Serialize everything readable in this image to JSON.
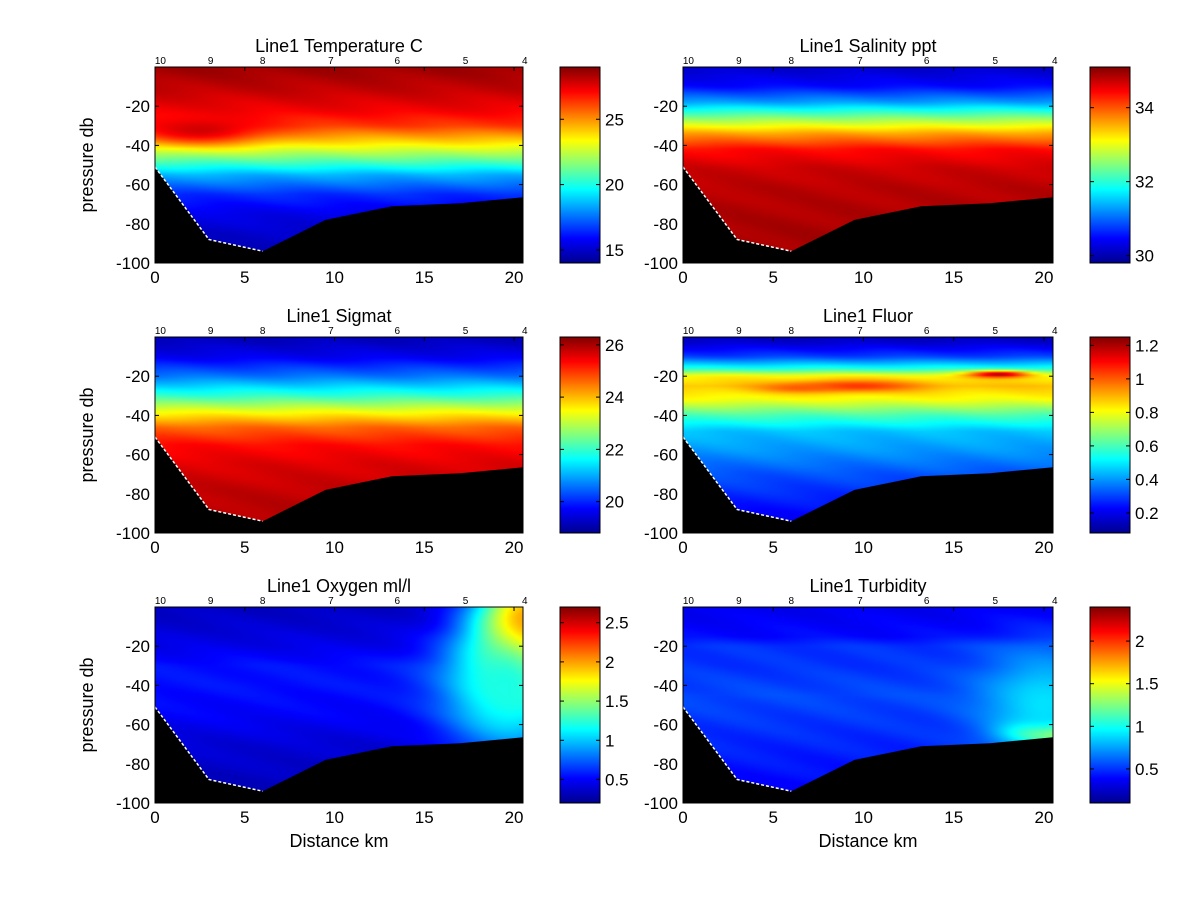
{
  "figure": {
    "colormap": [
      "#00008f",
      "#0000ff",
      "#00ffff",
      "#ffff00",
      "#ff0000",
      "#800000"
    ],
    "station_labels": [
      "10",
      "9",
      "8",
      "7",
      "6",
      "5",
      "4"
    ],
    "station_km": [
      0.3,
      3.1,
      6.0,
      9.8,
      13.5,
      17.3,
      20.6
    ],
    "ylabel": "pressure db",
    "xlabel": "Distance km",
    "xlim": [
      0,
      20.5
    ],
    "ylim": [
      -100,
      0
    ],
    "xticks": [
      0,
      5,
      10,
      15,
      20
    ],
    "yticks": [
      -20,
      -40,
      -60,
      -80,
      -100
    ],
    "bottom_profile": {
      "x": [
        0,
        3,
        6,
        9.5,
        13.2,
        17,
        20.5
      ],
      "y": [
        -51,
        -88,
        -94,
        -78,
        -71,
        -69.5,
        -66.5
      ]
    }
  },
  "chart_data": [
    {
      "type": "heatmap",
      "title": "Line1 Temperature C",
      "xlabel": "",
      "ylabel": "pressure db",
      "clim": [
        14,
        29
      ],
      "colorbar_ticks": [
        15,
        20,
        25
      ],
      "z_depth": [
        -2,
        -12,
        -22,
        -30,
        -38,
        -46,
        -55,
        -65,
        -75,
        -85,
        -95
      ],
      "z_profile": [
        28.5,
        28,
        27.3,
        26.3,
        24,
        21.5,
        18.5,
        16.5,
        15.5,
        15,
        14.8
      ],
      "features": [
        {
          "x": 2.5,
          "y": -32,
          "z": 27.8,
          "sx": 2.5,
          "sy": 5
        }
      ]
    },
    {
      "type": "heatmap",
      "title": "Line1 Salinity ppt",
      "xlabel": "",
      "ylabel": "",
      "clim": [
        29.8,
        35.1
      ],
      "colorbar_ticks": [
        30,
        32,
        34
      ],
      "z_depth": [
        -2,
        -10,
        -18,
        -26,
        -34,
        -42,
        -52,
        -62,
        -75,
        -88,
        -98
      ],
      "z_profile": [
        30.2,
        30.5,
        31.3,
        32.5,
        33.6,
        34.4,
        34.7,
        34.8,
        34.85,
        34.9,
        34.9
      ],
      "features": []
    },
    {
      "type": "heatmap",
      "title": "Line1 Sigmat",
      "xlabel": "",
      "ylabel": "pressure db",
      "clim": [
        18.8,
        26.3
      ],
      "colorbar_ticks": [
        20,
        22,
        24,
        26
      ],
      "z_depth": [
        -2,
        -10,
        -20,
        -30,
        -38,
        -46,
        -55,
        -65,
        -78,
        -90,
        -98
      ],
      "z_profile": [
        19.2,
        19.6,
        20.6,
        22,
        23.4,
        24.6,
        25.3,
        25.6,
        25.8,
        25.9,
        25.9
      ],
      "features": []
    },
    {
      "type": "heatmap",
      "title": "Line1 Fluor",
      "xlabel": "",
      "ylabel": "",
      "clim": [
        0.08,
        1.25
      ],
      "colorbar_ticks": [
        0.2,
        0.4,
        0.6,
        0.8,
        1,
        1.2
      ],
      "colorbar_ticklabels": [
        "0.2",
        "0.4",
        "0.6",
        "0.8",
        "1",
        "1.2"
      ],
      "z_depth": [
        -2,
        -10,
        -16,
        -20,
        -25,
        -32,
        -40,
        -48,
        -58,
        -70,
        -85,
        -98
      ],
      "z_profile": [
        0.15,
        0.3,
        0.55,
        0.82,
        0.88,
        0.8,
        0.6,
        0.45,
        0.4,
        0.32,
        0.25,
        0.2
      ],
      "features": [
        {
          "x": 9.5,
          "y": -25,
          "z": 1.05,
          "sx": 2.5,
          "sy": 2
        },
        {
          "x": 6.5,
          "y": -26,
          "z": 1.0,
          "sx": 1.5,
          "sy": 1.5
        },
        {
          "x": 17.5,
          "y": -19,
          "z": 1.2,
          "sx": 1.2,
          "sy": 1.2
        }
      ]
    },
    {
      "type": "heatmap",
      "title": "Line1 Oxygen ml/l",
      "xlabel": "Distance km",
      "ylabel": "pressure db",
      "clim": [
        0.2,
        2.7
      ],
      "colorbar_ticks": [
        0.5,
        1,
        1.5,
        2,
        2.5
      ],
      "colorbar_ticklabels": [
        "0.5",
        "1",
        "1.5",
        "2",
        "2.5"
      ],
      "z_depth": [
        -2,
        -12,
        -20,
        -30,
        -40,
        -55,
        -70,
        -85,
        -98
      ],
      "z_profile": [
        0.35,
        0.4,
        0.45,
        0.55,
        0.55,
        0.5,
        0.4,
        0.35,
        0.32
      ],
      "features": [
        {
          "x": 20.5,
          "y": -15,
          "z": 2.6,
          "sx": 1.8,
          "sy": 22
        },
        {
          "x": 19.5,
          "y": -40,
          "z": 1.2,
          "sx": 2.5,
          "sy": 25
        }
      ]
    },
    {
      "type": "heatmap",
      "title": "Line1 Turbidity",
      "xlabel": "Distance km",
      "ylabel": "",
      "clim": [
        0.1,
        2.4
      ],
      "colorbar_ticks": [
        0.5,
        1,
        1.5,
        2
      ],
      "colorbar_ticklabels": [
        "0.5",
        "1",
        "1.5",
        "2"
      ],
      "z_depth": [
        -2,
        -15,
        -20,
        -30,
        -45,
        -60,
        -75,
        -90,
        -98
      ],
      "z_profile": [
        0.35,
        0.4,
        0.5,
        0.5,
        0.55,
        0.5,
        0.45,
        0.4,
        0.4
      ],
      "features": [
        {
          "x": 20.5,
          "y": -64,
          "z": 2.3,
          "sx": 1.5,
          "sy": 4
        },
        {
          "x": 20.0,
          "y": -50,
          "z": 0.9,
          "sx": 2.5,
          "sy": 20
        }
      ]
    }
  ]
}
